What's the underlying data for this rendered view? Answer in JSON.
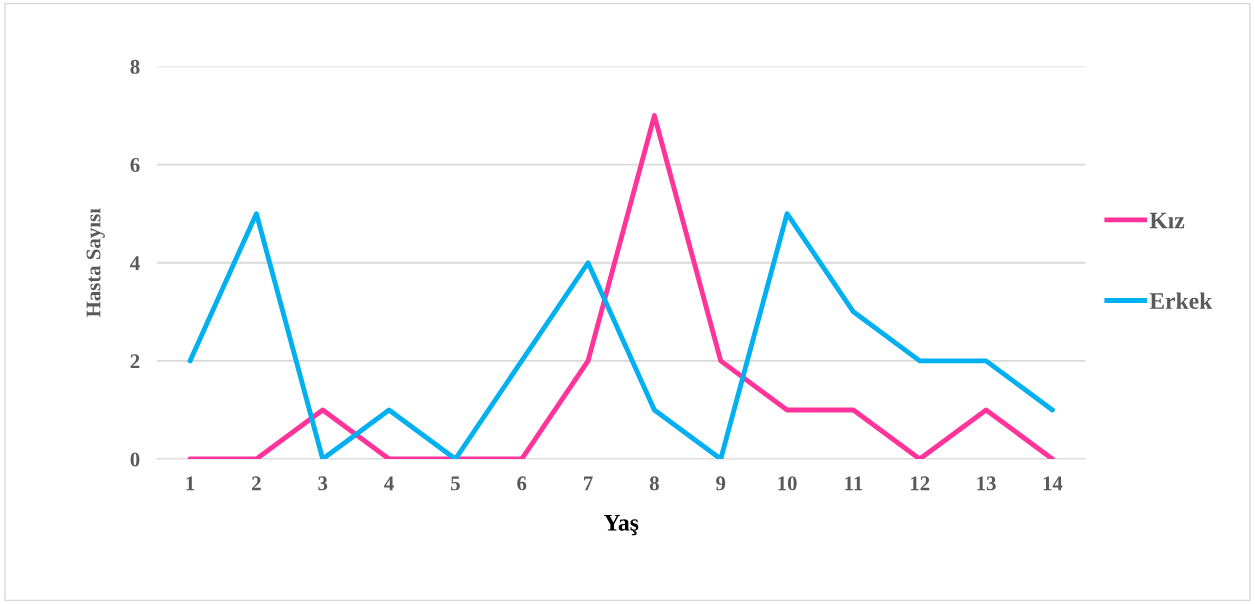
{
  "chart_data": {
    "type": "line",
    "xlabel": "Yaş",
    "ylabel": "Hasta Sayısı",
    "categories": [
      "1",
      "2",
      "3",
      "4",
      "5",
      "6",
      "7",
      "8",
      "9",
      "10",
      "11",
      "12",
      "13",
      "14"
    ],
    "series": [
      {
        "name": "Kız",
        "color": "#ff3399",
        "values": [
          0,
          0,
          1,
          0,
          0,
          0,
          2,
          7,
          2,
          1,
          1,
          0,
          1,
          0
        ]
      },
      {
        "name": "Erkek",
        "color": "#00b0f0",
        "values": [
          2,
          5,
          0,
          1,
          0,
          2,
          4,
          1,
          0,
          5,
          3,
          2,
          2,
          1
        ]
      }
    ],
    "ylim": [
      0,
      8
    ],
    "yticks": [
      0,
      2,
      4,
      6,
      8
    ],
    "grid": "y",
    "legend": "right",
    "marker": "none",
    "line_style": "solid"
  }
}
